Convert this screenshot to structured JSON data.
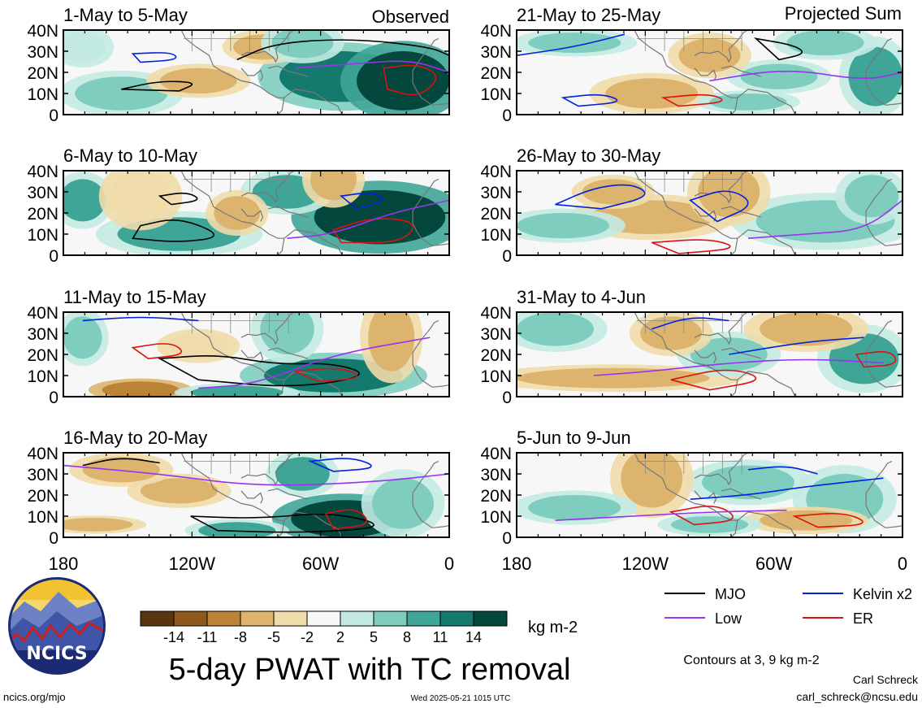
{
  "chart_data": {
    "type": "heatmap",
    "title": "5-day PWAT with TC removal",
    "unit": "kg m-2",
    "x_axis": {
      "ticks": [
        "180",
        "120W",
        "60W",
        "0"
      ],
      "range": [
        -180,
        0
      ]
    },
    "y_axis": {
      "ticks": [
        "40N",
        "30N",
        "20N",
        "10N",
        "0"
      ],
      "range": [
        0,
        40
      ]
    },
    "observed_label": "Observed",
    "projected_label": "Projected Sum",
    "colorbar": {
      "labels": [
        "-14",
        "-11",
        "-8",
        "-5",
        "-2",
        "2",
        "5",
        "8",
        "11",
        "14"
      ],
      "colors": [
        "#5a3610",
        "#8e5a1c",
        "#bb8435",
        "#dcb46e",
        "#efdcaa",
        "#f7f7f7",
        "#c3eae2",
        "#7fcdbf",
        "#3fa597",
        "#157a6e",
        "#04473d"
      ]
    },
    "legend": {
      "entries": [
        {
          "label": "MJO",
          "color": "#000000"
        },
        {
          "label": "Kelvin x2",
          "color": "#0022dd"
        },
        {
          "label": "Low",
          "color": "#9933ee"
        },
        {
          "label": "ER",
          "color": "#dd1111"
        }
      ],
      "note": "Contours at 3, 9 kg m-2"
    },
    "panels": [
      {
        "title": "1-May to 5-May",
        "group": "observed"
      },
      {
        "title": "6-May to 10-May",
        "group": "observed"
      },
      {
        "title": "11-May to 15-May",
        "group": "observed"
      },
      {
        "title": "16-May to 20-May",
        "group": "observed"
      },
      {
        "title": "21-May to 25-May",
        "group": "projected"
      },
      {
        "title": "26-May to 30-May",
        "group": "projected"
      },
      {
        "title": "31-May to 4-Jun",
        "group": "projected"
      },
      {
        "title": "5-Jun to 9-Jun",
        "group": "projected"
      }
    ]
  },
  "footer": {
    "org": "NCICS",
    "url": "ncics.org/mjo",
    "timestamp": "Wed 2025-05-21 1015 UTC",
    "author": "Carl Schreck",
    "email": "carl_schreck@ncsu.edu"
  }
}
